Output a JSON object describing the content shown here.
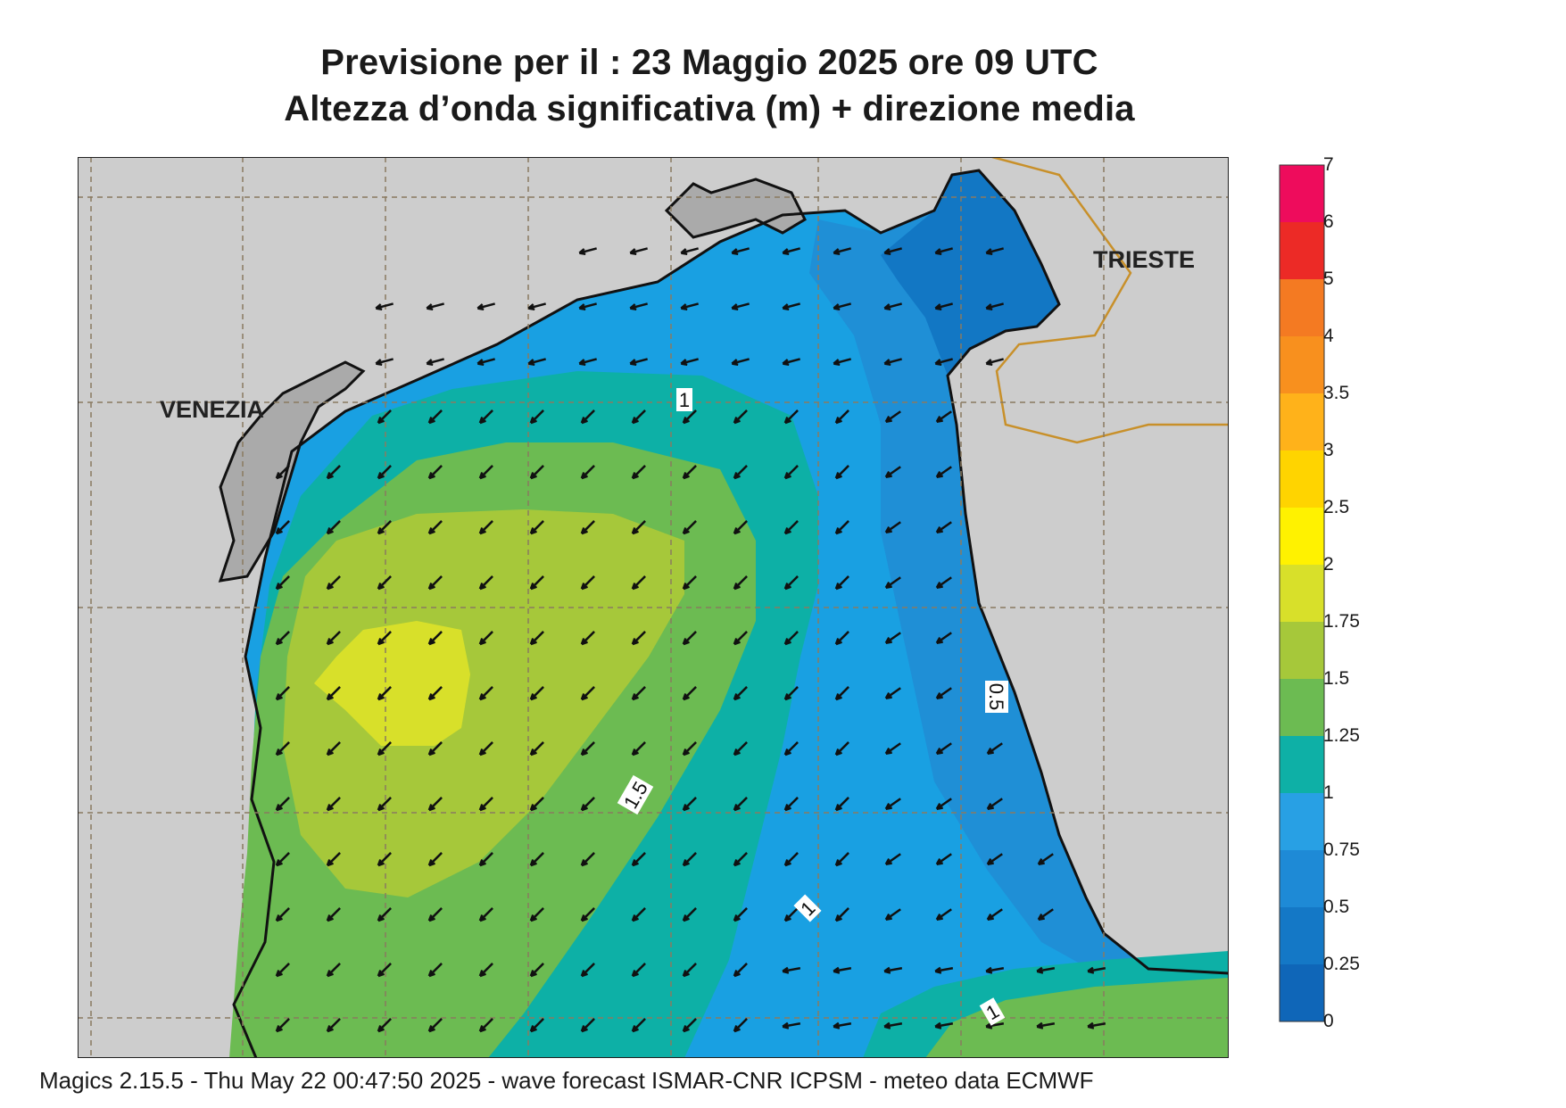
{
  "title_line1": "Previsione per il  :  23   Maggio  2025   ore 09 UTC",
  "title_line2": "Altezza d’onda significativa (m) + direzione media",
  "footer": "Magics 2.15.5 - Thu May 22 00:47:50 2025 - wave forecast  ISMAR-CNR  ICPSM - meteo data   ECMWF",
  "cities": {
    "venezia": "VENEZIA",
    "trieste": "TRIESTE"
  },
  "colorbar": {
    "levels": [
      "0",
      "0.25",
      "0.5",
      "0.75",
      "1",
      "1.25",
      "1.5",
      "1.75",
      "2",
      "2.5",
      "3",
      "3.5",
      "4",
      "5",
      "6",
      "7"
    ],
    "colors": [
      "#0f66b8",
      "#1478c6",
      "#1e8ad6",
      "#28a0e4",
      "#0eb0a6",
      "#6cbb52",
      "#a6c83a",
      "#d8e02a",
      "#fff200",
      "#ffd400",
      "#ffb21a",
      "#f8901e",
      "#f47a22",
      "#ec2a26",
      "#ee0c5c"
    ]
  },
  "contour_labels": [
    "1",
    "1.5",
    "1",
    "1",
    "0.5"
  ],
  "land_color": "#cdcdcd",
  "lagoon_color": "#aaaaaa"
}
